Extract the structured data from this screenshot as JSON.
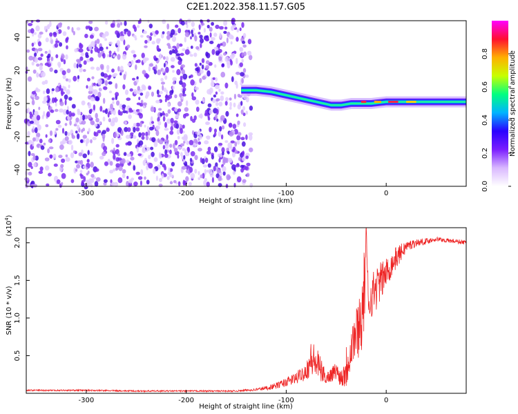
{
  "title": "C2E1.2022.358.11.57.G05",
  "chart_data": [
    {
      "type": "heatmap",
      "xlabel": "Height of straight line (km)",
      "ylabel": "Frequency (Hz)",
      "xlim": [
        -360,
        80
      ],
      "ylim": [
        -50,
        50
      ],
      "x_ticks": [
        -300,
        -200,
        -100,
        0
      ],
      "y_ticks": [
        -40,
        -20,
        0,
        20,
        40
      ],
      "colorbar": {
        "label": "Normalized spectral amplitude",
        "range": [
          0,
          1
        ],
        "ticks": [
          0.0,
          0.2,
          0.4,
          0.6,
          0.8
        ],
        "colors": [
          "#ffffff",
          "#d9b8ff",
          "#7a1dff",
          "#2a00ff",
          "#00b4ff",
          "#00ff80",
          "#c8ff00",
          "#ffb000",
          "#ff1030",
          "#ff00ff"
        ]
      },
      "noise_region": {
        "x_range": [
          -360,
          -135
        ],
        "y_range": [
          -50,
          50
        ]
      },
      "signal_track": {
        "x": [
          -145,
          -130,
          -115,
          -100,
          -85,
          -70,
          -55,
          -45,
          -35,
          -25,
          -15,
          0,
          20,
          40,
          60,
          80
        ],
        "freq": [
          8,
          8,
          7,
          5,
          3,
          1,
          -1,
          -1,
          0,
          0,
          0,
          1,
          1,
          1,
          1,
          1
        ]
      },
      "grid": false
    },
    {
      "type": "line",
      "xlabel": "Height of straight line (km)",
      "ylabel": "SNR (10 * v/v)",
      "y_scale_label": "(x10",
      "y_scale_exp": "4",
      "xlim": [
        -360,
        80
      ],
      "ylim": [
        0,
        2.2
      ],
      "x_ticks": [
        -300,
        -200,
        -100,
        0
      ],
      "y_ticks": [
        0.5,
        1.0,
        1.5,
        2.0
      ],
      "y_tick_labels": [
        "0.5",
        "1.0",
        "1.5",
        "2.0"
      ],
      "color": "#ee2222",
      "series": [
        {
          "x": [
            -360,
            -300,
            -250,
            -200,
            -150,
            -130,
            -120,
            -110,
            -100,
            -90,
            -80,
            -75,
            -70,
            -65,
            -60,
            -55,
            -50,
            -45,
            -40,
            -35,
            -30,
            -25,
            -22,
            -20,
            -18,
            -15,
            -10,
            -5,
            0,
            10,
            20,
            30,
            40,
            50,
            60,
            70,
            80
          ],
          "y": [
            0.04,
            0.04,
            0.03,
            0.03,
            0.03,
            0.05,
            0.07,
            0.1,
            0.15,
            0.2,
            0.3,
            0.45,
            0.4,
            0.3,
            0.2,
            0.25,
            0.3,
            0.2,
            0.35,
            0.65,
            0.8,
            1.0,
            1.3,
            2.15,
            1.2,
            1.3,
            1.4,
            1.5,
            1.6,
            1.8,
            1.95,
            2.0,
            2.02,
            2.05,
            2.03,
            2.02,
            2.0
          ],
          "noise_amplitude": [
            0.01,
            0.01,
            0.01,
            0.01,
            0.01,
            0.02,
            0.03,
            0.04,
            0.06,
            0.08,
            0.12,
            0.25,
            0.25,
            0.15,
            0.08,
            0.1,
            0.12,
            0.12,
            0.3,
            0.35,
            0.35,
            0.5,
            0.6,
            0.1,
            0.35,
            0.3,
            0.3,
            0.25,
            0.2,
            0.15,
            0.08,
            0.05,
            0.04,
            0.03,
            0.03,
            0.03,
            0.03
          ]
        }
      ],
      "grid": false
    }
  ]
}
